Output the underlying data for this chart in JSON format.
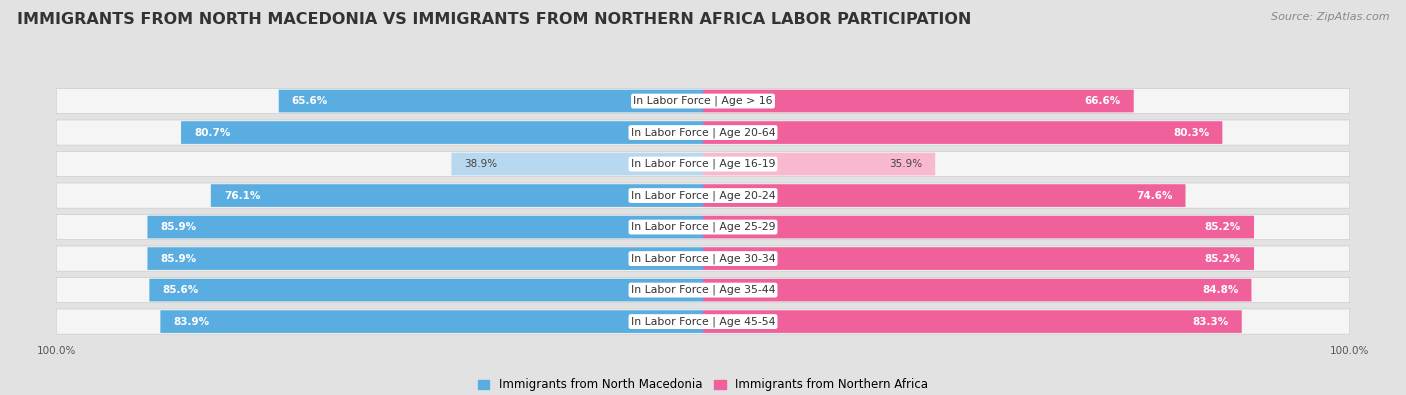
{
  "title": "IMMIGRANTS FROM NORTH MACEDONIA VS IMMIGRANTS FROM NORTHERN AFRICA LABOR PARTICIPATION",
  "source": "Source: ZipAtlas.com",
  "categories": [
    "In Labor Force | Age > 16",
    "In Labor Force | Age 20-64",
    "In Labor Force | Age 16-19",
    "In Labor Force | Age 20-24",
    "In Labor Force | Age 25-29",
    "In Labor Force | Age 30-34",
    "In Labor Force | Age 35-44",
    "In Labor Force | Age 45-54"
  ],
  "left_values": [
    65.6,
    80.7,
    38.9,
    76.1,
    85.9,
    85.9,
    85.6,
    83.9
  ],
  "right_values": [
    66.6,
    80.3,
    35.9,
    74.6,
    85.2,
    85.2,
    84.8,
    83.3
  ],
  "left_color": "#5aade0",
  "left_color_light": "#b8d8ef",
  "right_color": "#f0609a",
  "right_color_light": "#f8b8d0",
  "left_label": "Immigrants from North Macedonia",
  "right_label": "Immigrants from Northern Africa",
  "background_color": "#e2e2e2",
  "bar_bg_color": "#f5f5f5",
  "max_value": 100.0,
  "bar_height": 0.72,
  "title_fontsize": 11.5,
  "label_fontsize": 7.8,
  "value_fontsize": 7.5,
  "legend_fontsize": 8.5,
  "source_fontsize": 8,
  "low_threshold": 50
}
